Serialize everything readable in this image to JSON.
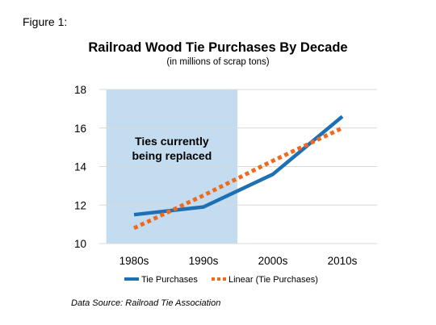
{
  "figure_label": "Figure 1:",
  "source_note": "Data Source: Railroad Tie Association",
  "chart_data": {
    "type": "line",
    "title": "Railroad Wood Tie Purchases By Decade",
    "subtitle": "(in millions of scrap tons)",
    "xlabel": "",
    "ylabel": "",
    "categories": [
      "1980s",
      "1990s",
      "2000s",
      "2010s"
    ],
    "ylim": [
      10,
      18
    ],
    "yticks": [
      10,
      12,
      14,
      16,
      18
    ],
    "grid": true,
    "series": [
      {
        "name": "Tie Purchases",
        "values": [
          11.5,
          11.9,
          13.6,
          16.6
        ],
        "color": "#1f6fb5",
        "style": "solid"
      },
      {
        "name": "Linear (Tie Purchases)",
        "values": [
          10.8,
          12.5,
          14.3,
          16.0
        ],
        "color": "#f06a1d",
        "style": "dotted"
      }
    ],
    "highlight": {
      "from_category": "1980s",
      "to_category": "1990s",
      "color": "#c3dcf0",
      "text_lines": [
        "Ties currently",
        "being replaced"
      ]
    },
    "legend_position": "bottom"
  }
}
